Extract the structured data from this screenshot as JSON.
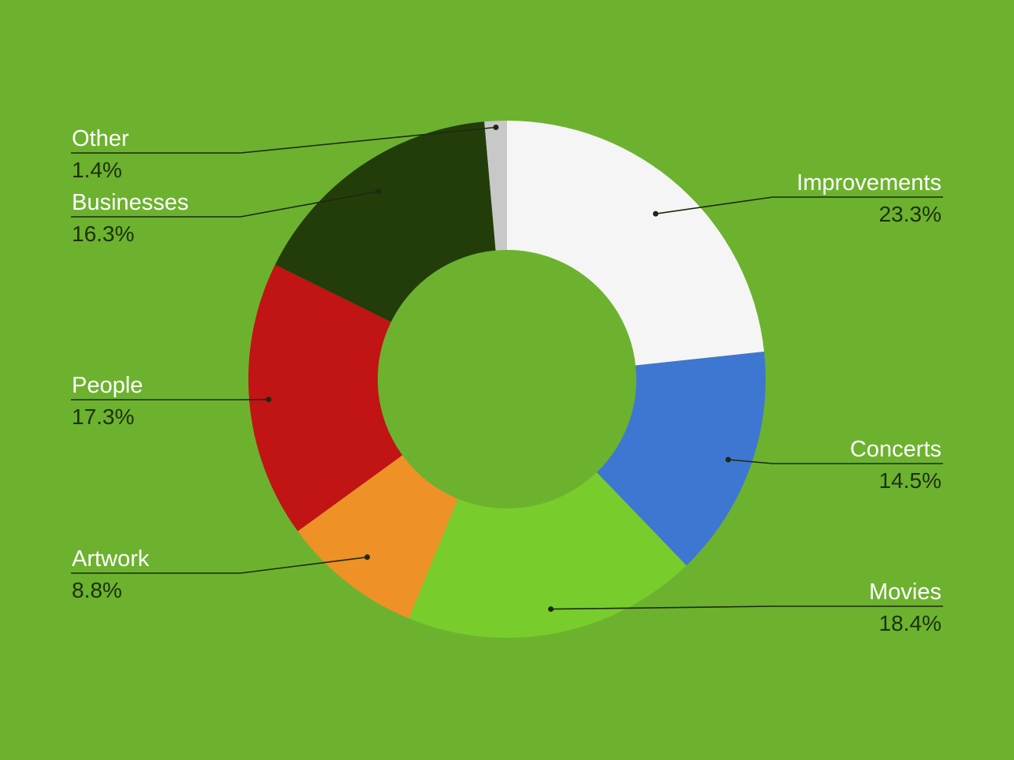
{
  "chart_data": {
    "type": "pie",
    "variant": "donut",
    "background_color": "#6cb22f",
    "slices": [
      {
        "label": "Improvements",
        "value": 23.3,
        "value_label": "23.3%",
        "color": "#f5f5f5"
      },
      {
        "label": "Concerts",
        "value": 14.5,
        "value_label": "14.5%",
        "color": "#3e77d1"
      },
      {
        "label": "Movies",
        "value": 18.4,
        "value_label": "18.4%",
        "color": "#78cd2d"
      },
      {
        "label": "Artwork",
        "value": 8.8,
        "value_label": "8.8%",
        "color": "#ee9127"
      },
      {
        "label": "People",
        "value": 17.3,
        "value_label": "17.3%",
        "color": "#c11414"
      },
      {
        "label": "Businesses",
        "value": 16.3,
        "value_label": "16.3%",
        "color": "#223d0a"
      },
      {
        "label": "Other",
        "value": 1.4,
        "value_label": "1.4%",
        "color": "#c8c8c8"
      }
    ],
    "legend": "none",
    "labels": "outside-with-leader-lines"
  }
}
